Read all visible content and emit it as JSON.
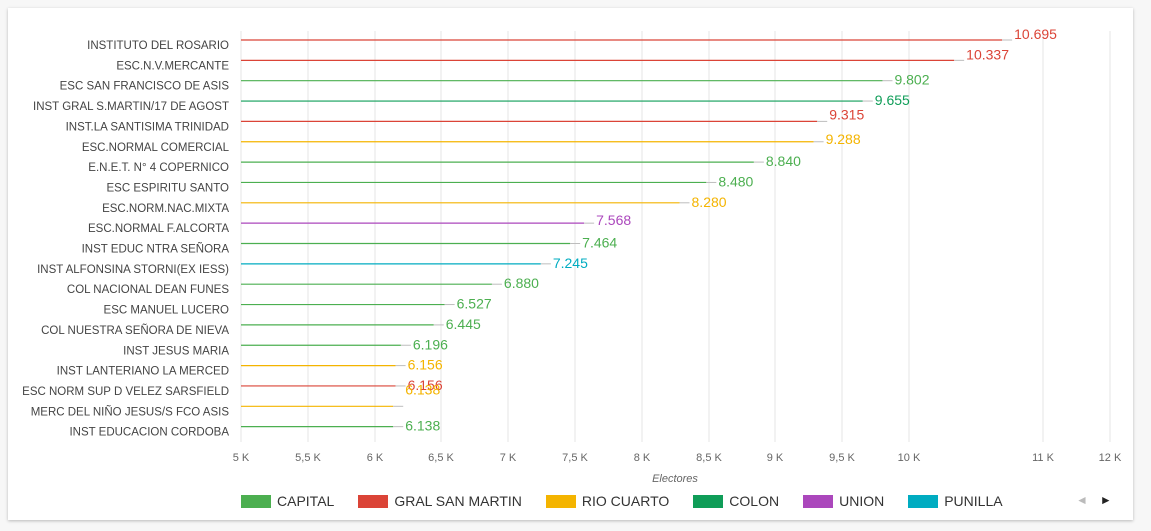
{
  "chart_data": {
    "type": "bar",
    "orientation": "horizontal",
    "xlabel": "Electores",
    "xlim": [
      5000,
      12000
    ],
    "xticks": [
      5000,
      5500,
      6000,
      6500,
      7000,
      7500,
      8000,
      8500,
      9000,
      9500,
      10000,
      11000,
      12000
    ],
    "xtick_labels": [
      "5 K",
      "5,5 K",
      "6 K",
      "6,5 K",
      "7 K",
      "7,5 K",
      "8 K",
      "8,5 K",
      "9 K",
      "9,5 K",
      "10 K",
      "11 K",
      "12 K"
    ],
    "grid": true,
    "legend_position": "bottom",
    "categories": [
      "INSTITUTO DEL ROSARIO",
      "ESC.N.V.MERCANTE",
      "ESC SAN FRANCISCO DE ASIS",
      "INST GRAL S.MARTIN/17 DE AGOST",
      "INST.LA SANTISIMA TRINIDAD",
      "ESC.NORMAL COMERCIAL",
      "E.N.E.T. N° 4 COPERNICO",
      "ESC ESPIRITU SANTO",
      "ESC.NORM.NAC.MIXTA",
      "ESC.NORMAL F.ALCORTA",
      "INST EDUC NTRA SEÑORA",
      "INST ALFONSINA STORNI(EX IESS)",
      "COL NACIONAL DEAN FUNES",
      "ESC MANUEL LUCERO",
      "COL NUESTRA SEÑORA DE NIEVA",
      "INST JESUS MARIA",
      "INST LANTERIANO LA MERCED",
      "ESC NORM SUP D VELEZ SARSFIELD",
      "MERC DEL NIÑO JESUS/S FCO ASIS",
      "INST EDUCACION CORDOBA"
    ],
    "values": [
      10695,
      10337,
      9802,
      9655,
      9315,
      9288,
      8840,
      8480,
      8280,
      7568,
      7464,
      7245,
      6880,
      6527,
      6445,
      6196,
      6156,
      6156,
      6138,
      6138
    ],
    "value_labels": [
      "10.695",
      "10.337",
      "9.802",
      "9.655",
      "9.315",
      "9.288",
      "8.840",
      "8.480",
      "8.280",
      "7.568",
      "7.464",
      "7.245",
      "6.880",
      "6.527",
      "6.445",
      "6.196",
      "6.156",
      "6.156",
      "6.138",
      "6.138"
    ],
    "groups": [
      "GRAL SAN MARTIN",
      "GRAL SAN MARTIN",
      "CAPITAL",
      "COLON",
      "GRAL SAN MARTIN",
      "RIO CUARTO",
      "CAPITAL",
      "CAPITAL",
      "RIO CUARTO",
      "UNION",
      "CAPITAL",
      "PUNILLA",
      "CAPITAL",
      "CAPITAL",
      "CAPITAL",
      "CAPITAL",
      "RIO CUARTO",
      "GRAL SAN MARTIN",
      "RIO CUARTO",
      "CAPITAL"
    ],
    "series": [
      {
        "name": "CAPITAL",
        "color": "#4caf50"
      },
      {
        "name": "GRAL SAN MARTIN",
        "color": "#db4437"
      },
      {
        "name": "RIO CUARTO",
        "color": "#f4b400"
      },
      {
        "name": "COLON",
        "color": "#0f9d58"
      },
      {
        "name": "UNION",
        "color": "#ab47bc"
      },
      {
        "name": "PUNILLA",
        "color": "#00acc1"
      }
    ]
  },
  "legend": {
    "items": [
      "CAPITAL",
      "GRAL SAN MARTIN",
      "RIO CUARTO",
      "COLON",
      "UNION",
      "PUNILLA"
    ],
    "prev_icon": "triangle-left-icon",
    "next_icon": "triangle-right-icon",
    "prev_glyph": "◄",
    "next_glyph": "►"
  }
}
